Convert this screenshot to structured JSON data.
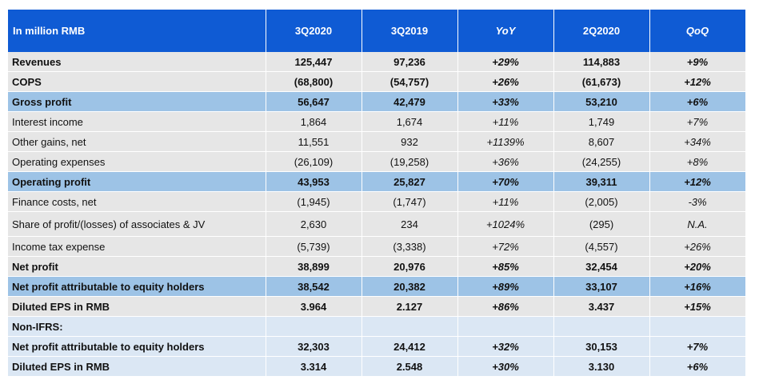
{
  "header": [
    "In million RMB",
    "3Q2020",
    "3Q2019",
    "YoY",
    "2Q2020",
    "QoQ"
  ],
  "rows": [
    {
      "label": "Revenues",
      "v": [
        "125,447",
        "97,236",
        "+29%",
        "114,883",
        "+9%"
      ]
    },
    {
      "label": "COPS",
      "v": [
        "(68,800)",
        "(54,757)",
        "+26%",
        "(61,673)",
        "+12%"
      ]
    },
    {
      "label": "Gross profit",
      "v": [
        "56,647",
        "42,479",
        "+33%",
        "53,210",
        "+6%"
      ]
    },
    {
      "label": "Interest income",
      "v": [
        "1,864",
        "1,674",
        "+11%",
        "1,749",
        "+7%"
      ]
    },
    {
      "label": "Other gains, net",
      "v": [
        "11,551",
        "932",
        "+1139%",
        "8,607",
        "+34%"
      ]
    },
    {
      "label": "Operating expenses",
      "v": [
        "(26,109)",
        "(19,258)",
        "+36%",
        "(24,255)",
        "+8%"
      ]
    },
    {
      "label": "Operating profit",
      "v": [
        "43,953",
        "25,827",
        "+70%",
        "39,311",
        "+12%"
      ]
    },
    {
      "label": "Finance costs, net",
      "v": [
        "(1,945)",
        "(1,747)",
        "+11%",
        "(2,005)",
        "-3%"
      ]
    },
    {
      "label": "Share of profit/(losses) of associates & JV",
      "v": [
        "2,630",
        "234",
        "+1024%",
        "(295)",
        "N.A."
      ]
    },
    {
      "label": "Income tax expense",
      "v": [
        "(5,739)",
        "(3,338)",
        "+72%",
        "(4,557)",
        "+26%"
      ]
    },
    {
      "label": "Net profit",
      "v": [
        "38,899",
        "20,976",
        "+85%",
        "32,454",
        "+20%"
      ]
    },
    {
      "label": "Net profit attributable to equity holders",
      "v": [
        "38,542",
        "20,382",
        "+89%",
        "33,107",
        "+16%"
      ]
    },
    {
      "label": "Diluted EPS in RMB",
      "v": [
        "3.964",
        "2.127",
        "+86%",
        "3.437",
        "+15%"
      ]
    },
    {
      "label": "Non-IFRS:",
      "v": [
        "",
        "",
        "",
        "",
        ""
      ]
    },
    {
      "label": "Net profit attributable to equity holders",
      "v": [
        "32,303",
        "24,412",
        "+32%",
        "30,153",
        "+7%"
      ]
    },
    {
      "label": "Diluted EPS in RMB",
      "v": [
        "3.314",
        "2.548",
        "+30%",
        "3.130",
        "+6%"
      ]
    }
  ]
}
